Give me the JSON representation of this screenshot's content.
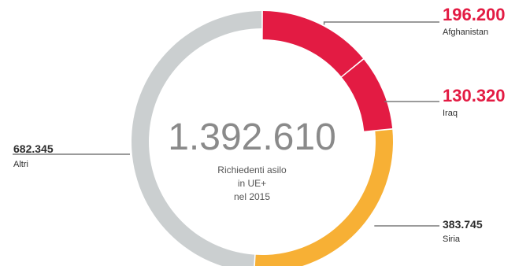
{
  "chart_data": {
    "type": "pie",
    "style": "donut",
    "total": {
      "value": "1.392.610",
      "caption_lines": [
        "Richiedenti asilo",
        "in UE+",
        "nel 2015"
      ]
    },
    "slices": [
      {
        "name": "Afghanistan",
        "label": "196.200",
        "value": 196200,
        "color": "#e31b43",
        "emphasis": true
      },
      {
        "name": "Iraq",
        "label": "130.320",
        "value": 130320,
        "color": "#e31b43",
        "emphasis": true
      },
      {
        "name": "Siria",
        "label": "383.745",
        "value": 383745,
        "color": "#f7b035",
        "emphasis": false
      },
      {
        "name": "Altri",
        "label": "682.345",
        "value": 682345,
        "color": "#cbcfd0",
        "emphasis": false
      }
    ],
    "colors": {
      "emphasis_text": "#e31b43",
      "normal_text": "#2d2d2d",
      "leader_line": "#7a7a7a",
      "center_text": "#8a8a8a"
    }
  }
}
